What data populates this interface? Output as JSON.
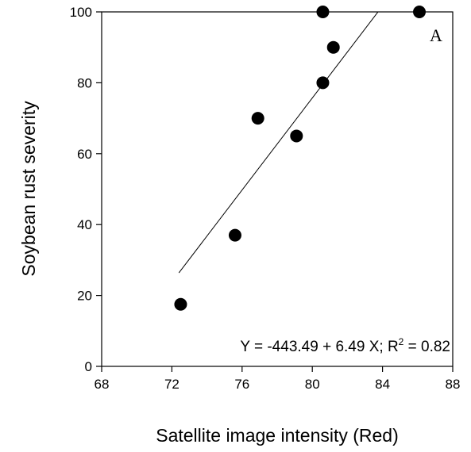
{
  "chart_data": {
    "type": "scatter",
    "title": "",
    "xlabel": "Satellite image intensity (Red)",
    "ylabel": "Soybean rust severity",
    "xlim": [
      68,
      88
    ],
    "ylim": [
      0,
      100
    ],
    "xticks": [
      68,
      72,
      76,
      80,
      84,
      88
    ],
    "yticks": [
      0,
      20,
      40,
      60,
      80,
      100
    ],
    "grid": false,
    "panel_label": "A",
    "points": [
      {
        "x": 72.5,
        "y": 17.5
      },
      {
        "x": 75.6,
        "y": 37
      },
      {
        "x": 76.9,
        "y": 70
      },
      {
        "x": 79.1,
        "y": 65
      },
      {
        "x": 80.6,
        "y": 80
      },
      {
        "x": 80.6,
        "y": 100
      },
      {
        "x": 81.2,
        "y": 90
      },
      {
        "x": 86.1,
        "y": 100
      }
    ],
    "regression": {
      "intercept": -443.49,
      "slope": 6.49,
      "r2": 0.82,
      "x_range": [
        72.4,
        83.74
      ]
    },
    "equation": {
      "prefix": "Y = -443.49 + 6.49 X; R",
      "sup": "2",
      "suffix": " = 0.82"
    }
  }
}
